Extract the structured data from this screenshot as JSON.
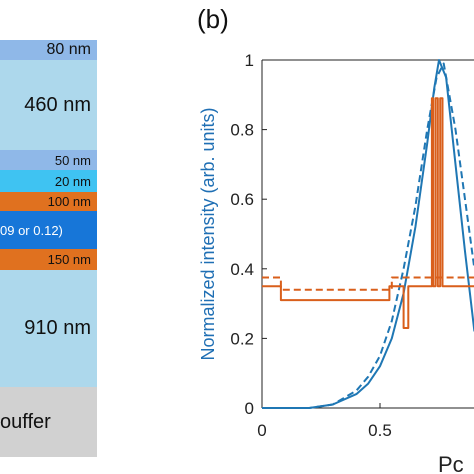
{
  "panel_a": {
    "layers": [
      {
        "label": "80 nm",
        "color": "#8fb8e8"
      },
      {
        "label": "460 nm",
        "color": "#add8ec"
      },
      {
        "label": "50 nm",
        "color": "#8fb8e8"
      },
      {
        "label": "20 nm",
        "color": "#3fc3f2"
      },
      {
        "label": "100 nm",
        "color": "#e0711f"
      },
      {
        "label": "09 or 0.12)",
        "color": "#1776d8"
      },
      {
        "label": "150 nm",
        "color": "#e0711f"
      },
      {
        "label": "910 nm",
        "color": "#add8ec"
      },
      {
        "label": "ouffer",
        "color": "#d1d1d1"
      }
    ]
  },
  "panel_b_label": "(b)",
  "chart_data": {
    "type": "line",
    "ylabel": "Normalized intensity (arb. units)",
    "xlabel": "Pc",
    "xlim": [
      0,
      1.05
    ],
    "ylim": [
      0,
      1
    ],
    "x_ticks": [
      "0",
      "0.5"
    ],
    "x_tick_values": [
      0,
      0.5
    ],
    "y_ticks": [
      "0",
      "0.2",
      "0.4",
      "0.6",
      "0.8",
      "1"
    ],
    "y_tick_values": [
      0,
      0.2,
      0.4,
      0.6,
      0.8,
      1
    ],
    "colors": {
      "blue": "#1f77b4",
      "orange": "#d95f1b"
    },
    "series": [
      {
        "style": "solid",
        "color": "blue",
        "x": [
          0,
          0.1,
          0.2,
          0.3,
          0.4,
          0.45,
          0.5,
          0.55,
          0.6,
          0.65,
          0.7,
          0.73,
          0.75,
          0.78,
          0.82,
          0.86,
          0.9
        ],
        "y": [
          0,
          0,
          0,
          0.01,
          0.04,
          0.07,
          0.12,
          0.2,
          0.33,
          0.52,
          0.76,
          0.92,
          1.0,
          0.95,
          0.7,
          0.45,
          0.22
        ]
      },
      {
        "style": "dashed",
        "color": "blue",
        "x": [
          0,
          0.1,
          0.2,
          0.3,
          0.4,
          0.45,
          0.5,
          0.55,
          0.6,
          0.65,
          0.7,
          0.74,
          0.77,
          0.82,
          0.86,
          0.9
        ],
        "y": [
          0,
          0,
          0,
          0.01,
          0.05,
          0.09,
          0.15,
          0.25,
          0.4,
          0.58,
          0.8,
          0.95,
          0.99,
          0.8,
          0.6,
          0.4
        ]
      },
      {
        "style": "solid",
        "color": "orange",
        "x": [
          0,
          0.08,
          0.08,
          0.54,
          0.54,
          0.6,
          0.6,
          0.62,
          0.62,
          0.72,
          0.72,
          0.725,
          0.725,
          0.735,
          0.735,
          0.745,
          0.745,
          0.755,
          0.755,
          0.765,
          0.765,
          0.9
        ],
        "y": [
          0.35,
          0.35,
          0.31,
          0.31,
          0.35,
          0.35,
          0.23,
          0.23,
          0.35,
          0.35,
          0.89,
          0.89,
          0.35,
          0.35,
          0.89,
          0.89,
          0.35,
          0.35,
          0.89,
          0.89,
          0.35,
          0.35
        ]
      },
      {
        "style": "dashed",
        "color": "orange",
        "x": [
          0,
          0.08,
          0.08,
          0.55,
          0.55,
          0.9
        ],
        "y": [
          0.375,
          0.375,
          0.34,
          0.34,
          0.375,
          0.375
        ]
      }
    ]
  }
}
